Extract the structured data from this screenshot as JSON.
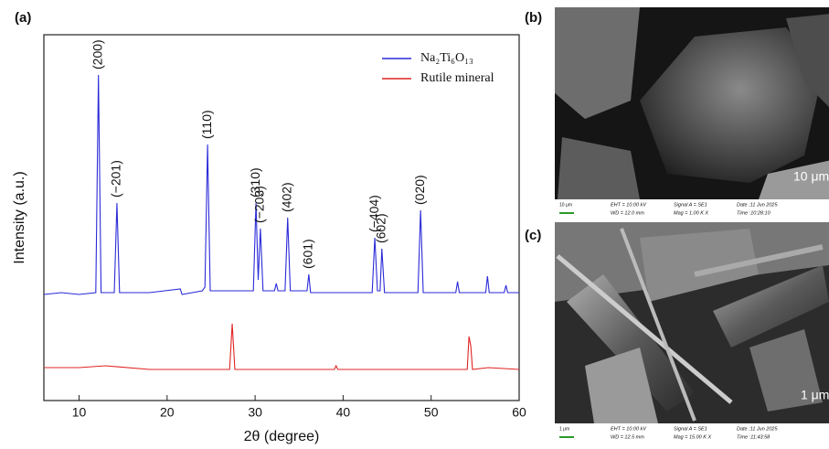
{
  "chart_data": {
    "type": "line",
    "xlabel": "2θ (degree)",
    "ylabel": "Intensity (a.u.)",
    "xlim": [
      6,
      60
    ],
    "xticks": [
      10,
      20,
      30,
      40,
      50,
      60
    ],
    "ylim": [
      0,
      100
    ],
    "legend": "upper right",
    "series": [
      {
        "name": "Na₂Ti₆O₁₃",
        "color": "#2a2ad8",
        "x": [
          6,
          8,
          10,
          11.9,
          12.2,
          12.5,
          14.0,
          14.3,
          14.6,
          18,
          21.5,
          21.7,
          24.0,
          24.3,
          24.6,
          24.9,
          27,
          29.8,
          30.1,
          30.35,
          30.6,
          30.9,
          32.2,
          32.4,
          32.6,
          33.4,
          33.7,
          34,
          35.9,
          36.1,
          36.3,
          40,
          43.3,
          43.6,
          43.9,
          44.2,
          44.4,
          44.7,
          48.5,
          48.8,
          49.1,
          52.8,
          53,
          53.2,
          56.2,
          56.4,
          56.6,
          58.3,
          58.5,
          58.7,
          60
        ],
        "values": [
          29,
          29.5,
          29,
          29.5,
          89,
          29.5,
          29.5,
          54,
          29.5,
          29.5,
          30.5,
          29,
          30,
          31,
          70,
          30,
          30,
          30,
          54,
          33,
          47,
          30,
          30,
          32,
          30,
          30,
          50,
          30,
          30,
          34.5,
          29.5,
          29.5,
          29.5,
          44.5,
          30,
          30,
          41.5,
          29.5,
          29.5,
          52,
          29.5,
          29.5,
          32.5,
          29.5,
          29.5,
          34,
          29.5,
          29.5,
          31.5,
          29.5,
          29.5
        ]
      },
      {
        "name": "Rutile mineral",
        "color": "#e02424",
        "x": [
          6,
          10,
          13,
          18,
          22,
          27.1,
          27.4,
          27.7,
          39,
          39.2,
          39.4,
          44,
          54.1,
          54.3,
          54.5,
          54.7,
          56.5,
          60
        ],
        "values": [
          9,
          9,
          9.5,
          8.5,
          8.5,
          8.5,
          21,
          8.5,
          8.5,
          9.5,
          8.5,
          8.5,
          8.5,
          17.5,
          15,
          8.5,
          9,
          8.5
        ]
      }
    ],
    "annotations": [
      {
        "text": "(200)",
        "x": 12.2
      },
      {
        "text": "(−201)",
        "x": 14.3
      },
      {
        "text": "(110)",
        "x": 24.6
      },
      {
        "text": "(310)",
        "x": 30.1
      },
      {
        "text": "(−203)",
        "x": 30.6
      },
      {
        "text": "(402)",
        "x": 33.7
      },
      {
        "text": "(601)",
        "x": 36.1
      },
      {
        "text": "(−404)",
        "x": 43.6
      },
      {
        "text": "(602)",
        "x": 44.4
      },
      {
        "text": "(020)",
        "x": 48.8
      }
    ]
  },
  "panels": [
    "(a)",
    "(b)",
    "(c)"
  ],
  "images": [
    {
      "scale": "10 μm",
      "bar": "10 μm",
      "eht": "EHT = 10.00 kV",
      "wd": "WD = 12.0 mm",
      "signal": "Signal A = SE1",
      "mag": "Mag =   1.00 K X",
      "date": "Date :11 Jun 2025",
      "time": "Time :10:28:10"
    },
    {
      "scale": "1 μm",
      "bar": "1 μm",
      "eht": "EHT = 10.00 kV",
      "wd": "WD = 12.5 mm",
      "signal": "Signal A = SE1",
      "mag": "Mag =  15.00 K X",
      "date": "Date :11 Jun 2025",
      "time": "Time :11:43:58"
    }
  ]
}
